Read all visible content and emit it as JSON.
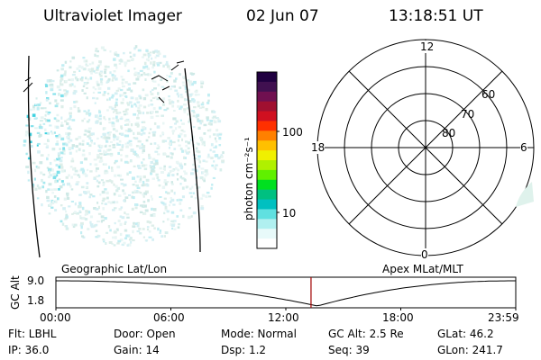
{
  "header": {
    "title": "Ultraviolet Imager",
    "date": "02 Jun 07",
    "time": "13:18:51 UT"
  },
  "colorbar": {
    "unit_label": "photon cm⁻²s⁻¹",
    "tick_labels": [
      "100",
      "10"
    ],
    "colors": [
      "#200040",
      "#401050",
      "#701050",
      "#a01030",
      "#d01020",
      "#ff3000",
      "#ff8000",
      "#ffc000",
      "#f0f000",
      "#b0f000",
      "#60f000",
      "#00e020",
      "#00c080",
      "#00c0c0",
      "#60e0e0",
      "#b0f0f0",
      "#e8fafa",
      "#ffffff"
    ]
  },
  "polar_plot": {
    "mlt_labels": {
      "top": "12",
      "left": "18",
      "right": "6",
      "bottom": "0"
    },
    "lat_labels": [
      "60",
      "70",
      "80"
    ]
  },
  "timeline": {
    "left_title": "Geographic Lat/Lon",
    "right_title": "Apex MLat/MLT",
    "y_axis_label": "GC Alt",
    "y_ticks": [
      "9.0",
      "1.8"
    ],
    "x_ticks": [
      "00:00",
      "06:00",
      "12:00",
      "18:00",
      "23:59"
    ],
    "current_time_fraction": 0.5548,
    "min_alt_fraction": 0.569
  },
  "info": {
    "row1": {
      "filter": "Flt: LBHL",
      "door": "Door: Open",
      "mode": "Mode: Normal",
      "gc_alt": "GC Alt: 2.5 Re",
      "glat": "GLat:  46.2"
    },
    "row2": {
      "ip": "IP: 36.0",
      "gain": "Gain: 14",
      "dsp": "Dsp:    1.2",
      "seq": "Seq: 39",
      "glon": "GLon: 241.7"
    }
  }
}
